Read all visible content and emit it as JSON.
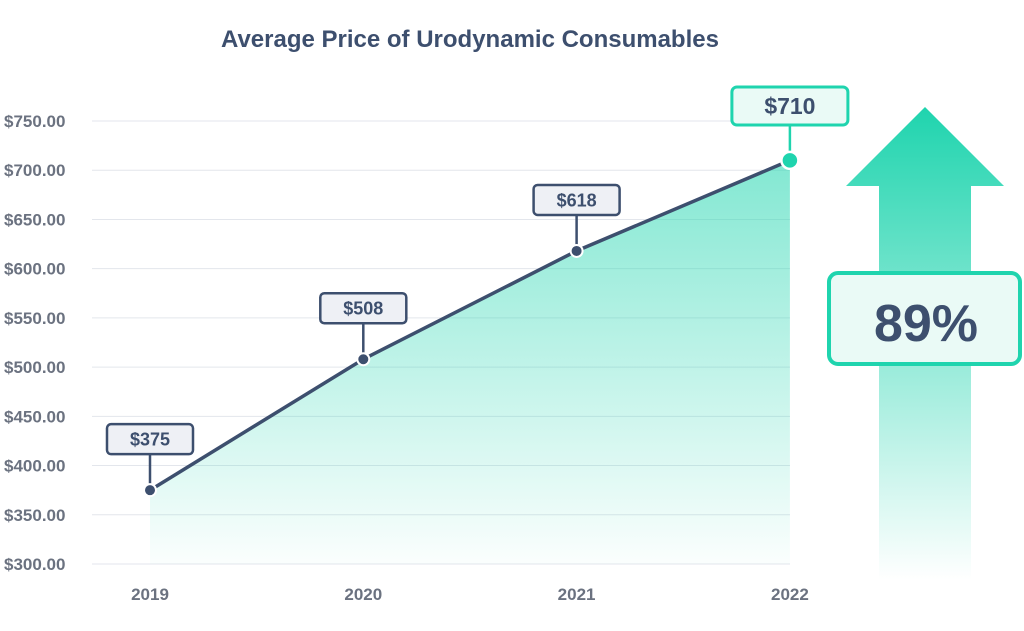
{
  "chart_data": {
    "type": "area",
    "title": "Average Price of Urodynamic Consumables",
    "xlabel": "",
    "ylabel": "",
    "categories": [
      "2019",
      "2020",
      "2021",
      "2022"
    ],
    "values": [
      375,
      508,
      618,
      710
    ],
    "data_labels": [
      "$375",
      "$508",
      "$618",
      "$710"
    ],
    "ylim": [
      300,
      750
    ],
    "yticks": [
      300,
      350,
      400,
      450,
      500,
      550,
      600,
      650,
      700,
      750
    ],
    "ytick_labels": [
      "$300.00",
      "$350.00",
      "$400.00",
      "$450.00",
      "$500.00",
      "$550.00",
      "$600.00",
      "$650.00",
      "$700.00",
      "$750.00"
    ],
    "grid": true,
    "legend": "none",
    "growth_label": "89%",
    "colors": {
      "line": "#3d4f6e",
      "fill": "#2fd8b4",
      "accent": "#1fd4ae",
      "label_bg": "#eef0f5",
      "grid": "#e3e6ec",
      "tick_text": "#6b7280"
    }
  }
}
